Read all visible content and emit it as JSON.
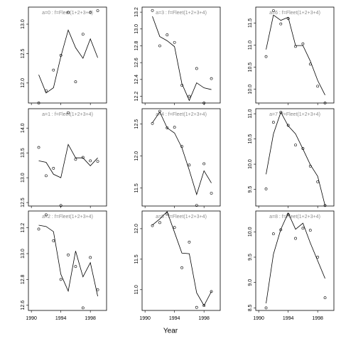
{
  "xlabel": "Year",
  "chart_data": [
    {
      "type": "line",
      "title": "a=0  : f=Fleet(1+2+3+4)",
      "x": [
        1991,
        1992,
        1993,
        1994,
        1995,
        1996,
        1997,
        1998,
        1999
      ],
      "series": [
        {
          "style": "line",
          "color": "#000000",
          "values": [
            12.14,
            11.83,
            11.92,
            12.45,
            12.9,
            12.6,
            12.42,
            12.75,
            12.43
          ]
        },
        {
          "style": "points",
          "color": "#000000",
          "values": [
            11.66,
            11.87,
            12.22,
            12.47,
            13.2,
            12.02,
            12.83,
            13.2,
            13.23
          ]
        }
      ],
      "xlim": [
        1989.6,
        2000.2
      ],
      "xticks": [
        1990,
        1994,
        1998
      ],
      "xticklabels": false,
      "ylim": [
        11.66,
        13.29
      ],
      "yticks": [
        {
          "value": 12,
          "label": "12.0"
        },
        12.5,
        {
          "value": 13,
          "label": "13.0"
        }
      ]
    },
    {
      "type": "line",
      "title": "a=1  : f=Fleet(1+2+3+4)",
      "x": [
        1991,
        1992,
        1993,
        1994,
        1995,
        1996,
        1997,
        1998,
        1999
      ],
      "series": [
        {
          "style": "line",
          "color": "#000000",
          "values": [
            13.34,
            13.31,
            13.07,
            13.0,
            13.67,
            13.4,
            13.4,
            13.24,
            13.4
          ]
        },
        {
          "style": "points",
          "color": "#000000",
          "values": [
            13.61,
            13.04,
            13.19,
            12.44,
            14.31,
            13.37,
            13.41,
            13.34,
            13.33
          ]
        }
      ],
      "xlim": [
        1989.6,
        2000.2
      ],
      "xticks": [
        1990,
        1994,
        1998
      ],
      "xticklabels": false,
      "ylim": [
        12.43,
        14.39
      ],
      "yticks": [
        12.5,
        {
          "value": 13,
          "label": "13.0"
        },
        13.5,
        {
          "value": 14,
          "label": "14.0"
        }
      ]
    },
    {
      "type": "line",
      "title": "a=2  : f=Fleet(1+2+3+4)",
      "x": [
        1991,
        1992,
        1993,
        1994,
        1995,
        1996,
        1997,
        1998,
        1999
      ],
      "series": [
        {
          "style": "line",
          "color": "#000000",
          "values": [
            13.22,
            13.21,
            13.17,
            12.84,
            12.71,
            13.02,
            12.82,
            12.93,
            12.67
          ]
        },
        {
          "style": "points",
          "color": "#000000",
          "values": [
            13.19,
            13.3,
            13.1,
            12.8,
            12.99,
            12.9,
            12.58,
            12.97,
            12.72
          ]
        }
      ],
      "xlim": [
        1989.6,
        2000.2
      ],
      "xticks": [
        1990,
        1994,
        1998
      ],
      "xticklabels": true,
      "ylim": [
        12.56,
        13.33
      ],
      "yticks": [
        12.6,
        12.8,
        {
          "value": 13,
          "label": "13.0"
        },
        13.2
      ]
    },
    {
      "type": "line",
      "title": "a=3  : f=Fleet(1+2+3+4)",
      "x": [
        1991,
        1992,
        1993,
        1994,
        1995,
        1996,
        1997,
        1998,
        1999
      ],
      "series": [
        {
          "style": "line",
          "color": "#000000",
          "values": [
            13.15,
            12.91,
            12.86,
            12.79,
            12.35,
            12.15,
            12.36,
            12.3,
            12.28
          ]
        },
        {
          "style": "points",
          "color": "#000000",
          "values": [
            13.22,
            12.8,
            12.93,
            12.84,
            12.33,
            12.2,
            12.53,
            12.12,
            12.41
          ]
        }
      ],
      "xlim": [
        1989.6,
        2000.2
      ],
      "xticks": [
        1990,
        1994,
        1998
      ],
      "xticklabels": false,
      "ylim": [
        12.12,
        13.26
      ],
      "yticks": [
        12.2,
        12.4,
        12.6,
        12.8,
        {
          "value": 13,
          "label": "13.0"
        },
        13.2
      ]
    },
    {
      "type": "line",
      "title": "a=4  : f=Fleet(1+2+3+4)",
      "x": [
        1991,
        1992,
        1993,
        1994,
        1995,
        1996,
        1997,
        1998,
        1999
      ],
      "series": [
        {
          "style": "line",
          "color": "#000000",
          "values": [
            12.52,
            12.69,
            12.44,
            12.36,
            12.13,
            11.78,
            11.4,
            11.77,
            11.58
          ]
        },
        {
          "style": "points",
          "color": "#000000",
          "values": [
            12.51,
            12.7,
            12.44,
            12.45,
            12.15,
            11.86,
            11.23,
            11.88,
            11.42
          ]
        }
      ],
      "xlim": [
        1989.6,
        2000.2
      ],
      "xticks": [
        1990,
        1994,
        1998
      ],
      "xticklabels": false,
      "ylim": [
        11.22,
        12.74
      ],
      "yticks": [
        11.5,
        {
          "value": 12,
          "label": "12.0"
        },
        12.5
      ]
    },
    {
      "type": "line",
      "title": "a=5  : f=Fleet(1+2+3+4)",
      "x": [
        1991,
        1992,
        1993,
        1994,
        1995,
        1996,
        1997,
        1998,
        1999
      ],
      "series": [
        {
          "style": "line",
          "color": "#000000",
          "values": [
            12.06,
            12.16,
            12.28,
            11.94,
            11.6,
            11.59,
            10.95,
            10.74,
            10.97
          ]
        },
        {
          "style": "points",
          "color": "#000000",
          "values": [
            12.05,
            12.1,
            12.24,
            12.02,
            11.36,
            11.78,
            10.71,
            10.74,
            10.97
          ]
        }
      ],
      "xlim": [
        1989.6,
        2000.2
      ],
      "xticks": [
        1990,
        1994,
        1998
      ],
      "xticklabels": true,
      "ylim": [
        10.66,
        12.29
      ],
      "yticks": [
        {
          "value": 11,
          "label": "11.0"
        },
        11.5,
        {
          "value": 12,
          "label": "12.0"
        }
      ]
    },
    {
      "type": "line",
      "title": "a=6  : f=Fleet(1+2+3+4)",
      "x": [
        1991,
        1992,
        1993,
        1994,
        1995,
        1996,
        1997,
        1998,
        1999
      ],
      "series": [
        {
          "style": "line",
          "color": "#000000",
          "values": [
            10.9,
            11.68,
            11.56,
            11.63,
            10.99,
            10.99,
            10.64,
            10.2,
            9.87
          ]
        },
        {
          "style": "points",
          "color": "#000000",
          "values": [
            10.74,
            11.78,
            11.48,
            11.6,
            10.97,
            11.03,
            10.57,
            10.07,
            9.69
          ]
        }
      ],
      "xlim": [
        1989.6,
        2000.2
      ],
      "xticks": [
        1990,
        1994,
        1998
      ],
      "xticklabels": false,
      "ylim": [
        9.69,
        11.86
      ],
      "yticks": [
        {
          "value": 10,
          "label": "10.0"
        },
        10.5,
        {
          "value": 11,
          "label": "11.0"
        },
        11.5
      ]
    },
    {
      "type": "line",
      "title": "a=7  : f=Fleet(1+2+3+4)",
      "x": [
        1991,
        1992,
        1993,
        1994,
        1995,
        1996,
        1997,
        1998,
        1999
      ],
      "series": [
        {
          "style": "line",
          "color": "#000000",
          "values": [
            9.8,
            10.6,
            11.03,
            10.76,
            10.6,
            10.3,
            9.99,
            9.76,
            9.18
          ]
        },
        {
          "style": "points",
          "color": "#000000",
          "values": [
            9.51,
            10.83,
            11.03,
            10.77,
            10.38,
            10.31,
            9.96,
            9.65,
            9.18
          ]
        }
      ],
      "xlim": [
        1989.6,
        2000.2
      ],
      "xticks": [
        1990,
        1994,
        1998
      ],
      "xticklabels": false,
      "ylim": [
        9.17,
        11.1
      ],
      "yticks": [
        9.5,
        {
          "value": 10,
          "label": "10.0"
        },
        10.5,
        {
          "value": 11,
          "label": "11.0"
        }
      ]
    },
    {
      "type": "line",
      "title": "a=8  : f=Fleet(1+2+3+4)",
      "x": [
        1991,
        1992,
        1993,
        1994,
        1995,
        1996,
        1997,
        1998,
        1999
      ],
      "series": [
        {
          "style": "line",
          "color": "#000000",
          "values": [
            8.59,
            9.56,
            10.05,
            10.37,
            10.05,
            10.17,
            9.78,
            9.43,
            9.08
          ]
        },
        {
          "style": "points",
          "color": "#000000",
          "values": [
            8.5,
            9.96,
            10.04,
            10.34,
            9.87,
            10.07,
            10.03,
            9.5,
            8.7
          ]
        }
      ],
      "xlim": [
        1989.6,
        2000.2
      ],
      "xticks": [
        1990,
        1994,
        1998
      ],
      "xticklabels": true,
      "ylim": [
        8.45,
        10.41
      ],
      "yticks": [
        8.5,
        {
          "value": 9,
          "label": "9.0"
        },
        9.5,
        {
          "value": 10,
          "label": "10.0"
        }
      ]
    }
  ]
}
